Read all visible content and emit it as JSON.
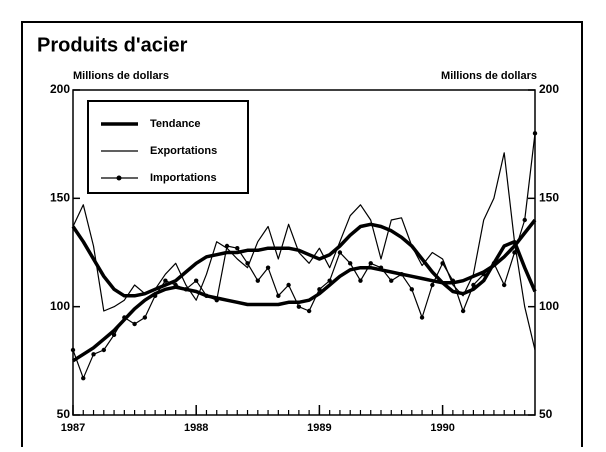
{
  "chart_data": {
    "type": "line",
    "title": "Produits d'acier",
    "ylabel": "Millions de dollars",
    "y2label": "Millions de dollars",
    "trend_name": "Tendance",
    "x": [
      1987,
      1987.0833,
      1987.1667,
      1987.25,
      1987.3333,
      1987.4167,
      1987.5,
      1987.5833,
      1987.6667,
      1987.75,
      1987.8333,
      1987.9167,
      1988,
      1988.0833,
      1988.1667,
      1988.25,
      1988.3333,
      1988.4167,
      1988.5,
      1988.5833,
      1988.6667,
      1988.75,
      1988.8333,
      1988.9167,
      1989,
      1989.0833,
      1989.1667,
      1989.25,
      1989.3333,
      1989.4167,
      1989.5,
      1989.5833,
      1989.6667,
      1989.75,
      1989.8333,
      1989.9167,
      1990,
      1990.0833,
      1990.1667,
      1990.25,
      1990.3333,
      1990.4167,
      1990.5,
      1990.5833,
      1990.6667,
      1990.75
    ],
    "series": [
      {
        "name": "Exportations",
        "color": "#000000",
        "marker": false,
        "values": [
          137,
          147,
          128,
          98,
          100,
          103,
          110,
          106,
          108,
          115,
          120,
          110,
          103,
          115,
          130,
          127,
          122,
          118,
          130,
          137,
          122,
          138,
          125,
          120,
          127,
          118,
          130,
          142,
          147,
          140,
          122,
          140,
          141,
          128,
          119,
          125,
          122,
          110,
          105,
          115,
          140,
          150,
          171,
          130,
          100,
          80
        ],
        "trend": [
          137,
          130,
          122,
          114,
          108,
          105,
          105,
          106,
          108,
          110,
          112,
          116,
          120,
          123,
          124,
          125,
          125,
          126,
          126,
          127,
          127,
          127,
          126,
          124,
          122,
          124,
          128,
          133,
          137,
          138,
          137,
          135,
          132,
          128,
          122,
          116,
          111,
          107,
          106,
          108,
          112,
          120,
          128,
          130,
          118,
          107
        ]
      },
      {
        "name": "Importations",
        "color": "#000000",
        "marker": true,
        "values": [
          80,
          67,
          78,
          80,
          87,
          95,
          92,
          95,
          105,
          112,
          110,
          108,
          112,
          105,
          103,
          128,
          127,
          120,
          112,
          118,
          105,
          110,
          100,
          98,
          108,
          112,
          125,
          120,
          112,
          120,
          118,
          112,
          115,
          108,
          95,
          110,
          120,
          112,
          98,
          110,
          115,
          120,
          110,
          125,
          140,
          180
        ],
        "trend": [
          75,
          78,
          81,
          85,
          89,
          94,
          99,
          103,
          106,
          108,
          109,
          108,
          107,
          105,
          104,
          103,
          102,
          101,
          101,
          101,
          101,
          102,
          102,
          103,
          106,
          110,
          114,
          117,
          118,
          118,
          117,
          116,
          115,
          114,
          113,
          112,
          111,
          111,
          112,
          114,
          116,
          119,
          123,
          128,
          134,
          140
        ]
      }
    ],
    "xlim": [
      1987,
      1990.75
    ],
    "xticks": [
      1987,
      1988,
      1989,
      1990
    ],
    "ylim": [
      50,
      200
    ],
    "yticks": [
      50,
      100,
      150,
      200
    ],
    "y2lim": [
      50,
      200
    ],
    "y2ticks": [
      50,
      100,
      150,
      200
    ],
    "legend": "upper left"
  }
}
